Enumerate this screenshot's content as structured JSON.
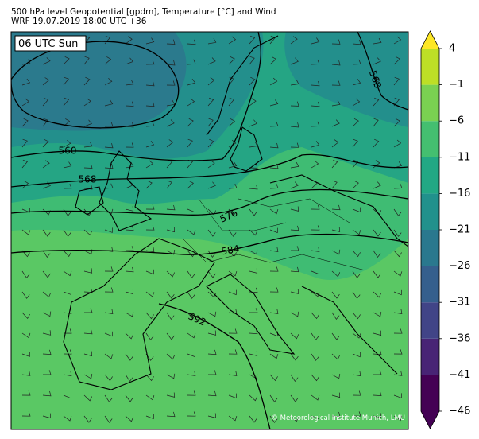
{
  "header": {
    "line1": "500 hPa level Geopotential [gpdm], Temperature [°C] and Wind",
    "line2": "WRF 19.07.2019 18:00 UTC +36"
  },
  "map": {
    "time_label": "06 UTC Sun",
    "contour_labels": [
      "560",
      "568",
      "576",
      "584",
      "592",
      "568"
    ],
    "credit": "© Meteorological Institute Munich, LMU"
  },
  "colorbar": {
    "ticks": [
      {
        "value": 4,
        "label": "4"
      },
      {
        "value": -1,
        "label": "−1"
      },
      {
        "value": -6,
        "label": "−6"
      },
      {
        "value": -11,
        "label": "−11"
      },
      {
        "value": -16,
        "label": "−16"
      },
      {
        "value": -21,
        "label": "−21"
      },
      {
        "value": -26,
        "label": "−26"
      },
      {
        "value": -31,
        "label": "−31"
      },
      {
        "value": -36,
        "label": "−36"
      },
      {
        "value": -41,
        "label": "−41"
      },
      {
        "value": -46,
        "label": "−46"
      }
    ],
    "colors": [
      "#440154",
      "#482475",
      "#414487",
      "#355f8d",
      "#2a788e",
      "#21918c",
      "#22a884",
      "#44bf70",
      "#7ad151",
      "#bddf26",
      "#e2e418"
    ],
    "extend_colors": [
      "#440154",
      "#fde725"
    ]
  }
}
